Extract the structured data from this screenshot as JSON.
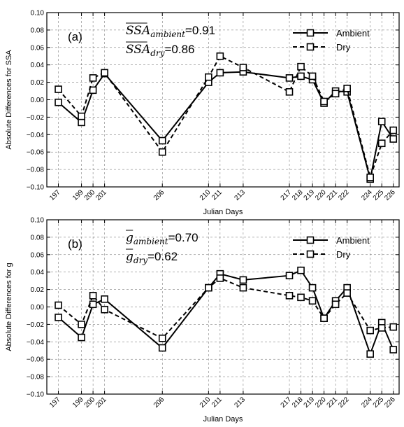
{
  "chart_data": [
    {
      "type": "line",
      "panel_label": "(a)",
      "ylabel": "Absolute Differences for SSA",
      "xlabel": "Julian Days",
      "ylim": [
        -0.1,
        0.1
      ],
      "xlim": [
        196,
        226.5
      ],
      "xticks": [
        197,
        199,
        200,
        201,
        206,
        210,
        211,
        213,
        217,
        218,
        219,
        220,
        221,
        222,
        224,
        225,
        226
      ],
      "yticks": [
        -0.1,
        -0.08,
        -0.06,
        -0.04,
        -0.02,
        0.0,
        0.02,
        0.04,
        0.06,
        0.08,
        0.1
      ],
      "ytick_labels": [
        "−0.10",
        "−0.08",
        "−0.06",
        "−0.04",
        "−0.02",
        "0.00",
        "0.02",
        "0.04",
        "0.06",
        "0.08",
        "0.10"
      ],
      "grid": true,
      "legend_position": "top-right",
      "annotations": [
        {
          "base": "SSA",
          "sub": "ambient",
          "eq": "=0.91"
        },
        {
          "base": "SSA",
          "sub": "dry",
          "eq": "=0.86"
        }
      ],
      "series": [
        {
          "name": "Ambient",
          "style": "solid",
          "color": "#000000",
          "points": [
            [
              197,
              -0.003
            ],
            [
              199,
              -0.026
            ],
            [
              200,
              0.011
            ],
            [
              201,
              0.03
            ],
            [
              206,
              -0.047
            ],
            [
              210,
              0.02
            ],
            [
              211,
              0.031
            ],
            [
              213,
              0.032
            ],
            [
              217,
              0.025
            ],
            [
              218,
              0.027
            ],
            [
              219,
              0.023
            ],
            [
              220,
              -0.004
            ],
            [
              221,
              0.01
            ],
            [
              222,
              0.009
            ],
            [
              224,
              -0.091
            ],
            [
              225,
              -0.025
            ],
            [
              226,
              -0.045
            ]
          ]
        },
        {
          "name": "Dry",
          "style": "dashed",
          "color": "#000000",
          "points": [
            [
              197,
              0.012
            ],
            [
              199,
              -0.019
            ],
            [
              200,
              0.025
            ],
            [
              201,
              0.031
            ],
            [
              206,
              -0.06
            ],
            [
              210,
              0.026
            ],
            [
              211,
              0.05
            ],
            [
              213,
              0.037
            ],
            [
              217,
              0.009
            ],
            [
              218,
              0.038
            ],
            [
              219,
              0.027
            ],
            [
              220,
              -0.002
            ],
            [
              221,
              0.007
            ],
            [
              222,
              0.013
            ],
            [
              224,
              -0.089
            ],
            [
              225,
              -0.05
            ],
            [
              226,
              -0.035
            ]
          ]
        }
      ]
    },
    {
      "type": "line",
      "panel_label": "(b)",
      "ylabel": "Absolute Differences for g",
      "xlabel": "Julian Days",
      "ylim": [
        -0.1,
        0.1
      ],
      "xlim": [
        196,
        226.5
      ],
      "xticks": [
        197,
        199,
        200,
        201,
        206,
        210,
        211,
        213,
        217,
        218,
        219,
        220,
        221,
        222,
        224,
        225,
        226
      ],
      "yticks": [
        -0.1,
        -0.08,
        -0.06,
        -0.04,
        -0.02,
        0.0,
        0.02,
        0.04,
        0.06,
        0.08,
        0.1
      ],
      "ytick_labels": [
        "−0.10",
        "−0.08",
        "−0.06",
        "−0.04",
        "−0.02",
        "0.00",
        "0.02",
        "0.04",
        "0.06",
        "0.08",
        "0.10"
      ],
      "grid": true,
      "legend_position": "top-right",
      "annotations": [
        {
          "base": "g",
          "sub": "ambient",
          "eq": "=0.70"
        },
        {
          "base": "g",
          "sub": "dry",
          "eq": "=0.62"
        }
      ],
      "series": [
        {
          "name": "Ambient",
          "style": "solid",
          "color": "#000000",
          "points": [
            [
              197,
              -0.012
            ],
            [
              199,
              -0.035
            ],
            [
              200,
              0.003
            ],
            [
              201,
              0.009
            ],
            [
              206,
              -0.047
            ],
            [
              210,
              0.022
            ],
            [
              211,
              0.038
            ],
            [
              213,
              0.031
            ],
            [
              217,
              0.036
            ],
            [
              218,
              0.042
            ],
            [
              219,
              0.022
            ],
            [
              220,
              -0.013
            ],
            [
              221,
              0.007
            ],
            [
              222,
              0.022
            ],
            [
              224,
              -0.054
            ],
            [
              225,
              -0.018
            ],
            [
              226,
              -0.049
            ]
          ]
        },
        {
          "name": "Dry",
          "style": "dashed",
          "color": "#000000",
          "points": [
            [
              197,
              0.002
            ],
            [
              199,
              -0.02
            ],
            [
              200,
              0.013
            ],
            [
              201,
              -0.003
            ],
            [
              206,
              -0.036
            ],
            [
              210,
              0.022
            ],
            [
              211,
              0.033
            ],
            [
              213,
              0.022
            ],
            [
              217,
              0.013
            ],
            [
              218,
              0.011
            ],
            [
              219,
              0.007
            ],
            [
              220,
              -0.013
            ],
            [
              221,
              0.003
            ],
            [
              222,
              0.016
            ],
            [
              224,
              -0.027
            ],
            [
              225,
              -0.024
            ],
            [
              226,
              -0.023
            ]
          ]
        }
      ]
    }
  ]
}
